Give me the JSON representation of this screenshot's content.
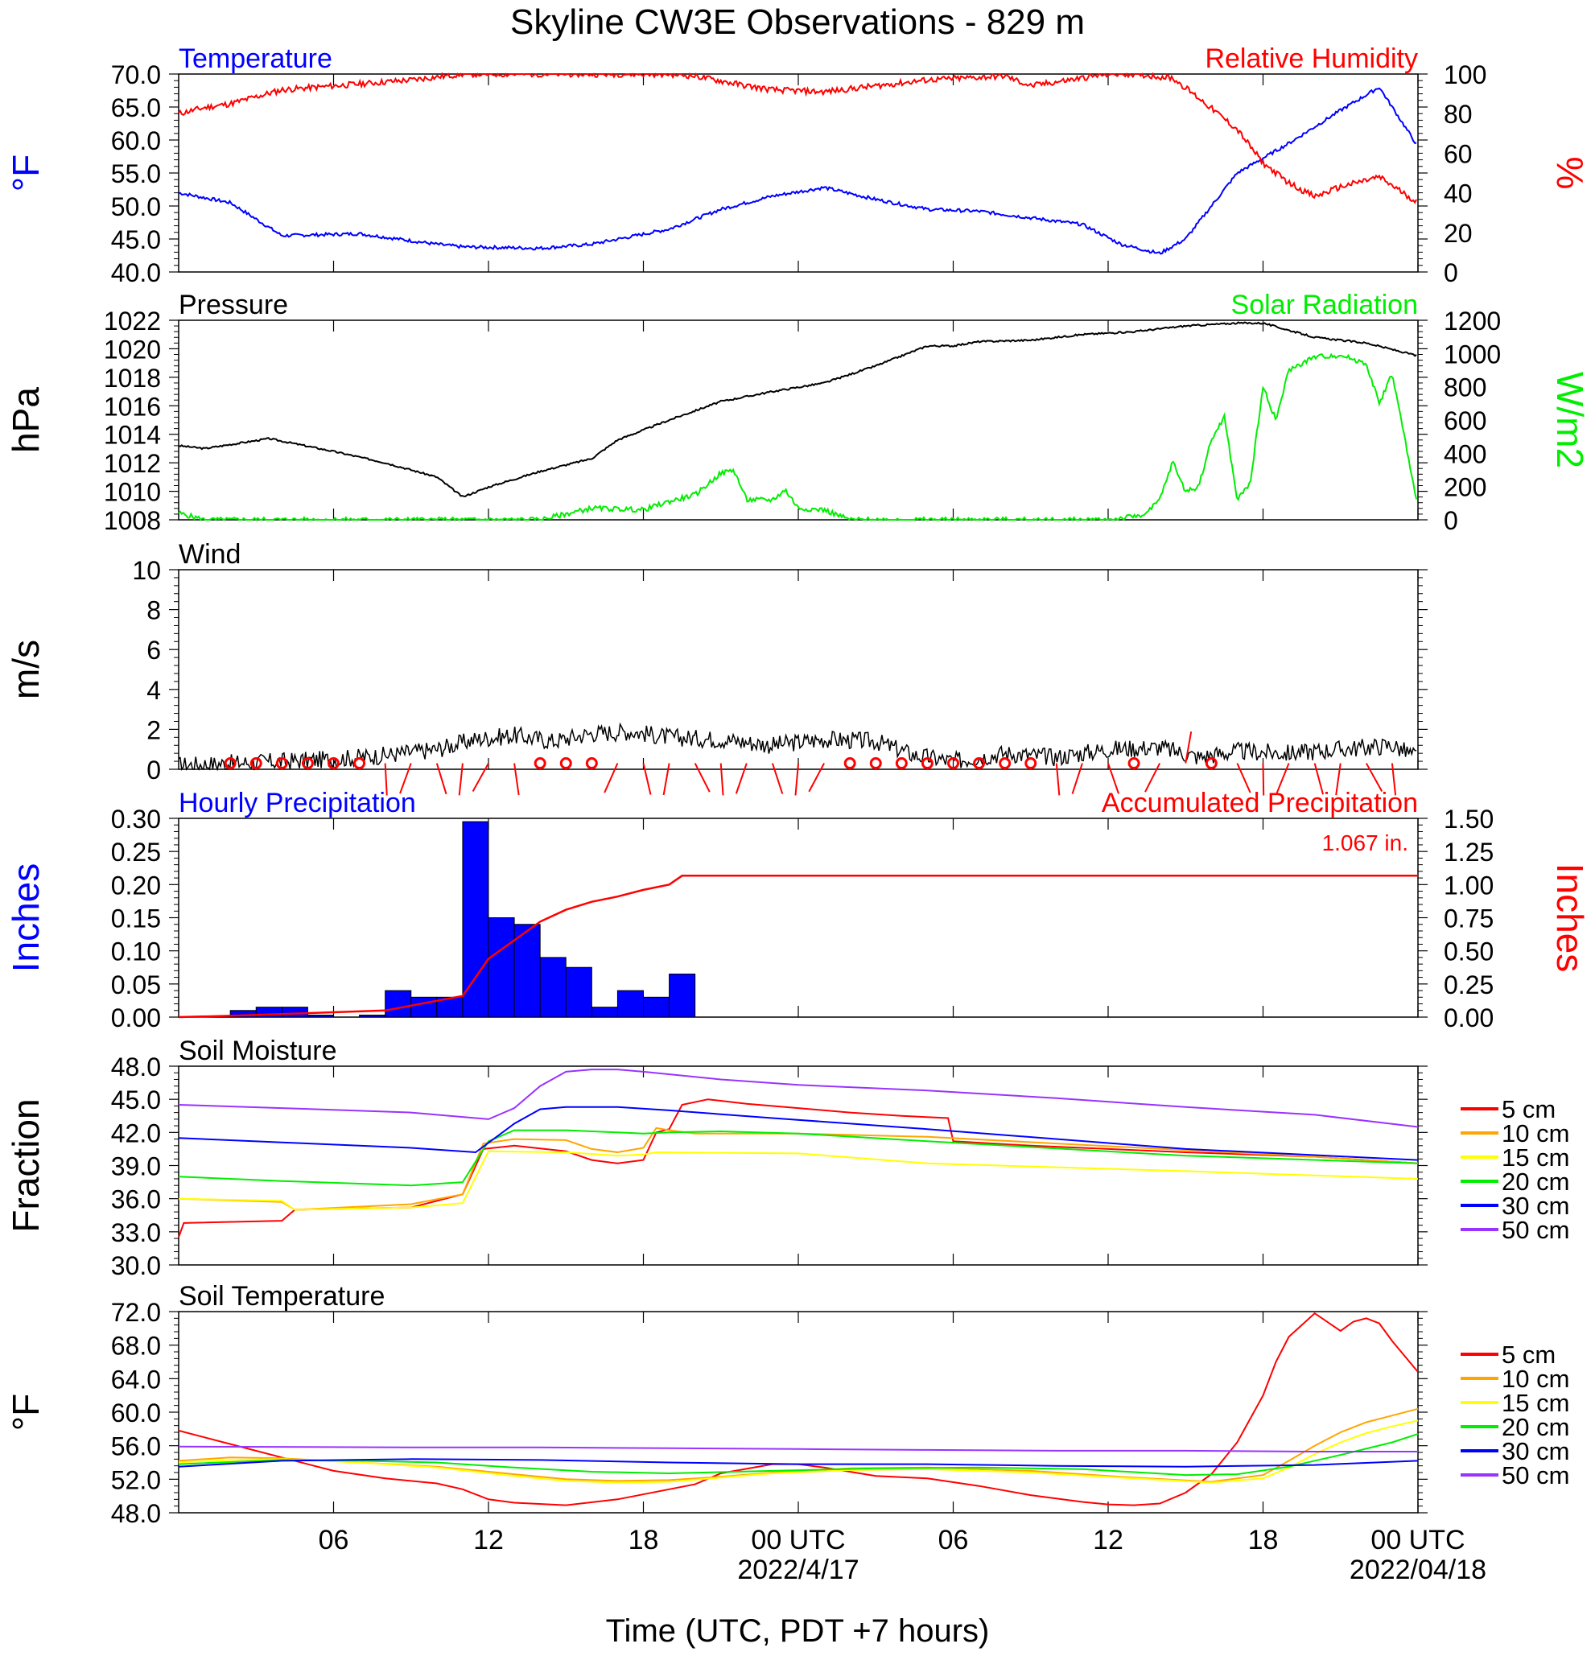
{
  "title": "Skyline CW3E Observations - 829 m",
  "x_axis": {
    "label": "Time (UTC, PDT +7 hours)",
    "ticks": [
      "06",
      "12",
      "18",
      "00 UTC",
      "06",
      "12",
      "18",
      "00 UTC"
    ],
    "date_labels": [
      "2022/4/17",
      "2022/04/18"
    ]
  },
  "colors": {
    "temperature": "#0000ff",
    "humidity": "#ff0000",
    "pressure": "#000000",
    "solar": "#00ee00",
    "precip_bar": "#0000ff",
    "accum": "#ff0000",
    "d5": "#ff0000",
    "d10": "#ffa500",
    "d15": "#ffff00",
    "d20": "#00ee00",
    "d30": "#0000ff",
    "d50": "#9933ff"
  },
  "chart_data": [
    {
      "type": "line",
      "title_left": "Temperature",
      "title_right": "Relative Humidity",
      "ylabel_left": "°F",
      "ylabel_right": "%",
      "ylim_left": [
        40,
        70
      ],
      "ylim_right": [
        0,
        100
      ],
      "yticks_left": [
        "70.0",
        "65.0",
        "60.0",
        "55.0",
        "50.0",
        "45.0",
        "40.0"
      ],
      "yticks_right": [
        "100",
        "80",
        "60",
        "40",
        "20",
        "0"
      ],
      "series": [
        {
          "name": "Temperature",
          "axis": "left",
          "hours": [
            1,
            3,
            5,
            8,
            11,
            12,
            15,
            17,
            20,
            22,
            24,
            26,
            28,
            30,
            32,
            34,
            36,
            37.5,
            39,
            40,
            42,
            44,
            46,
            47.5,
            49
          ],
          "values": [
            52,
            50.5,
            45.5,
            45.8,
            44.2,
            43.8,
            43.6,
            44.2,
            46.5,
            49.5,
            51.5,
            52.8,
            51,
            49.5,
            49.2,
            48.2,
            47.2,
            44.2,
            42.8,
            45,
            55,
            59.5,
            64.5,
            68,
            59
          ]
        },
        {
          "name": "Relative Humidity",
          "axis": "right",
          "hours": [
            1,
            2,
            3,
            5,
            7,
            10,
            12,
            15,
            18,
            20,
            21,
            23,
            24,
            26,
            28,
            30,
            33,
            34,
            37,
            38,
            39.5,
            40.5,
            42,
            43,
            44,
            45,
            46,
            47.5,
            49
          ],
          "values": [
            80,
            83,
            85,
            92,
            94,
            97,
            100,
            100,
            100,
            100,
            99,
            94,
            92,
            91,
            94,
            97,
            99,
            94,
            100,
            100,
            98,
            88,
            72,
            55,
            45,
            38,
            43,
            48,
            35
          ]
        }
      ]
    },
    {
      "type": "line",
      "title_left": "Pressure",
      "title_right": "Solar Radiation",
      "ylabel_left": "hPa",
      "ylabel_right": "W/m2",
      "ylim_left": [
        1008,
        1022
      ],
      "ylim_right": [
        0,
        1200
      ],
      "yticks_left": [
        "1022",
        "1020",
        "1018",
        "1016",
        "1014",
        "1012",
        "1010",
        "1008"
      ],
      "yticks_right": [
        "1200",
        "1000",
        "800",
        "600",
        "400",
        "200",
        "0"
      ],
      "series": [
        {
          "name": "Pressure",
          "axis": "left",
          "hours": [
            1,
            2,
            4.5,
            7,
            9,
            11,
            12,
            13,
            15,
            17,
            18,
            20,
            22,
            24,
            26,
            28,
            30,
            31,
            32,
            34,
            36,
            38,
            40,
            42,
            43,
            45,
            47,
            49
          ],
          "values": [
            1013.2,
            1013,
            1013.7,
            1012.8,
            1012,
            1011,
            1009.6,
            1010.3,
            1011.4,
            1012.3,
            1013.6,
            1015,
            1016.3,
            1017,
            1017.6,
            1018.8,
            1020.2,
            1020.2,
            1020.5,
            1020.6,
            1021,
            1021.2,
            1021.6,
            1021.8,
            1021.8,
            1020.8,
            1020.4,
            1019.5
          ]
        },
        {
          "name": "Solar Radiation",
          "axis": "right",
          "hours": [
            1,
            2,
            14,
            15,
            17,
            19,
            20,
            20.5,
            21,
            22,
            22.5,
            23,
            24,
            24.5,
            25,
            26,
            27,
            37,
            38,
            38.5,
            39,
            39.5,
            40,
            40.5,
            41,
            41.5,
            42,
            42.5,
            43,
            43.5,
            44,
            45,
            46,
            47,
            47.5,
            48,
            48.5,
            49
          ],
          "values": [
            40,
            0,
            0,
            0,
            70,
            60,
            110,
            130,
            150,
            280,
            300,
            120,
            120,
            180,
            70,
            60,
            0,
            0,
            20,
            40,
            120,
            350,
            170,
            200,
            480,
            620,
            120,
            220,
            800,
            600,
            900,
            980,
            990,
            940,
            700,
            880,
            480,
            60
          ]
        }
      ]
    },
    {
      "type": "scatter",
      "title_left": "Wind",
      "ylabel_left": "m/s",
      "ylim_left": [
        0,
        10
      ],
      "yticks_left": [
        "10",
        "8",
        "6",
        "4",
        "2",
        "0"
      ],
      "series": [
        {
          "name": "Wind",
          "hours": [
            1,
            3,
            5,
            7,
            9,
            11,
            12.5,
            14,
            15.5,
            17,
            18.5,
            20,
            22,
            24,
            26,
            28,
            29.5,
            31,
            33,
            35,
            37,
            39,
            40.5,
            42,
            44,
            46,
            48,
            49
          ],
          "values": [
            0.2,
            0.3,
            0.4,
            0.5,
            0.7,
            1,
            1.5,
            1.7,
            1.4,
            1.8,
            1.9,
            1.6,
            1.5,
            1.2,
            1.5,
            1.4,
            0.7,
            0.4,
            0.8,
            0.6,
            1,
            1.1,
            0.6,
            0.9,
            0.8,
            1,
            1.2,
            0.6
          ]
        }
      ],
      "calm_hours": [
        3,
        4,
        5,
        6,
        7,
        8,
        15,
        16,
        17,
        27,
        28,
        29,
        30,
        31,
        32,
        33,
        34,
        38,
        41
      ]
    },
    {
      "type": "bar",
      "title_left": "Hourly Precipitation",
      "title_right": "Accumulated Precipitation",
      "annotation": "1.067 in.",
      "ylabel_left": "Inches",
      "ylabel_right": "Inches",
      "ylim_left": [
        0,
        0.3
      ],
      "ylim_right": [
        0,
        1.5
      ],
      "yticks_left": [
        "0.30",
        "0.25",
        "0.20",
        "0.15",
        "0.10",
        "0.05",
        "0.00"
      ],
      "yticks_right": [
        "1.50",
        "1.25",
        "1.00",
        "0.75",
        "0.50",
        "0.25",
        "0.00"
      ],
      "bar_start_hour": 3,
      "hourly": [
        0.01,
        0.015,
        0.015,
        0.003,
        0,
        0.003,
        0.04,
        0.03,
        0.03,
        0.295,
        0.15,
        0.14,
        0.09,
        0.075,
        0.015,
        0.04,
        0.03,
        0.065
      ],
      "accum_hours": [
        1,
        3,
        9,
        12,
        13,
        14,
        15,
        16,
        17,
        18,
        19,
        20,
        20.5,
        49
      ],
      "accum_values": [
        0,
        0.01,
        0.05,
        0.16,
        0.44,
        0.58,
        0.72,
        0.81,
        0.87,
        0.91,
        0.96,
        1.0,
        1.067,
        1.067
      ]
    },
    {
      "type": "line",
      "title_left": "Soil Moisture",
      "ylabel_left": "Fraction",
      "ylim_left": [
        30,
        48
      ],
      "yticks_left": [
        "48.0",
        "45.0",
        "42.0",
        "39.0",
        "36.0",
        "33.0",
        "30.0"
      ],
      "legend": [
        "5 cm",
        "10 cm",
        "15 cm",
        "20 cm",
        "30 cm",
        "50 cm"
      ],
      "series": [
        {
          "name": "5 cm",
          "color_key": "d5",
          "hours": [
            1,
            1.2,
            5,
            5.5,
            10,
            12,
            12.8,
            14,
            16,
            17,
            18,
            19,
            19.5,
            20,
            20.5,
            21.5,
            23,
            25,
            27,
            29,
            30.8,
            31,
            34,
            40,
            45,
            49
          ],
          "values": [
            32.5,
            33.8,
            34,
            35,
            35.2,
            36.4,
            40.5,
            40.8,
            40.3,
            39.5,
            39.2,
            39.5,
            42,
            42.3,
            44.5,
            45,
            44.6,
            44.2,
            43.8,
            43.5,
            43.3,
            41.2,
            40.8,
            40.2,
            39.8,
            39.2
          ]
        },
        {
          "name": "10 cm",
          "color_key": "d10",
          "hours": [
            1,
            5,
            5.5,
            10,
            12,
            12.8,
            14,
            16,
            17,
            18,
            19,
            19.5,
            20,
            21,
            25,
            30,
            35,
            45,
            49
          ],
          "values": [
            36,
            35.7,
            35,
            35.5,
            36.4,
            41,
            41.4,
            41.3,
            40.5,
            40.2,
            40.6,
            42.4,
            42.2,
            41.9,
            41.9,
            41.6,
            41,
            39.8,
            39.2
          ]
        },
        {
          "name": "15 cm",
          "color_key": "d15",
          "hours": [
            1,
            5,
            5.5,
            10,
            12,
            13,
            16,
            18,
            19,
            19.5,
            25,
            30,
            40,
            49
          ],
          "values": [
            36,
            35.8,
            35,
            35.2,
            35.6,
            40.3,
            40.2,
            39.9,
            40,
            40.2,
            40.1,
            39.2,
            38.5,
            37.8
          ]
        },
        {
          "name": "20 cm",
          "color_key": "d20",
          "hours": [
            1,
            5,
            10,
            12,
            13,
            14,
            16,
            18,
            19,
            20,
            22,
            25,
            30,
            40,
            49
          ],
          "values": [
            38,
            37.6,
            37.2,
            37.5,
            41.2,
            42.2,
            42.2,
            42,
            41.9,
            42,
            42.1,
            41.9,
            41.2,
            39.9,
            39.2
          ]
        },
        {
          "name": "30 cm",
          "color_key": "d30",
          "hours": [
            1,
            5,
            10,
            12.5,
            14,
            15,
            16,
            18,
            20,
            24,
            30,
            40,
            49
          ],
          "values": [
            41.5,
            41.1,
            40.6,
            40.2,
            42.8,
            44.1,
            44.3,
            44.3,
            44,
            43.3,
            42.3,
            40.5,
            39.5
          ]
        },
        {
          "name": "50 cm",
          "color_key": "d50",
          "hours": [
            1,
            5,
            10,
            13,
            14,
            15,
            16,
            17,
            18,
            19,
            22,
            25,
            30,
            35,
            40,
            45,
            49
          ],
          "values": [
            44.5,
            44.2,
            43.8,
            43.2,
            44.2,
            46.2,
            47.5,
            47.7,
            47.7,
            47.5,
            46.8,
            46.3,
            45.8,
            45.1,
            44.3,
            43.6,
            42.5
          ]
        }
      ]
    },
    {
      "type": "line",
      "title_left": "Soil Temperature",
      "ylabel_left": "°F",
      "ylim_left": [
        48,
        72
      ],
      "yticks_left": [
        "72.0",
        "68.0",
        "64.0",
        "60.0",
        "56.0",
        "52.0",
        "48.0"
      ],
      "legend": [
        "5 cm",
        "10 cm",
        "15 cm",
        "20 cm",
        "30 cm",
        "50 cm"
      ],
      "series": [
        {
          "name": "5 cm",
          "color_key": "d5",
          "hours": [
            1,
            3,
            5,
            7,
            9,
            11,
            12,
            13,
            14,
            16,
            18,
            20,
            21,
            22,
            24,
            25,
            26,
            28,
            30,
            32,
            34,
            36,
            37,
            38,
            39,
            40,
            41,
            42,
            43,
            43.5,
            44,
            45,
            46,
            46.5,
            47,
            47.5,
            48,
            49
          ],
          "values": [
            57.8,
            56.2,
            54.6,
            53,
            52.1,
            51.5,
            50.8,
            49.6,
            49.2,
            48.9,
            49.6,
            50.8,
            51.4,
            52.7,
            53.8,
            53.8,
            53.4,
            52.4,
            52.1,
            51.2,
            50.1,
            49.3,
            49,
            48.9,
            49.1,
            50.4,
            52.6,
            56.4,
            62,
            66,
            69,
            71.8,
            69.7,
            70.8,
            71.2,
            70.6,
            68.5,
            64.8
          ]
        },
        {
          "name": "10 cm",
          "color_key": "d10",
          "hours": [
            1,
            3,
            5,
            8,
            11,
            14,
            16,
            18,
            20,
            22,
            24,
            27,
            30,
            34,
            38,
            41,
            43,
            44,
            45,
            46,
            47,
            48,
            49
          ],
          "values": [
            54.2,
            54.6,
            54.5,
            54,
            53.5,
            52.6,
            52,
            51.8,
            51.9,
            52.3,
            52.8,
            53.3,
            53.4,
            53,
            52.2,
            51.7,
            52.5,
            54.2,
            56,
            57.6,
            58.8,
            59.6,
            60.4
          ]
        },
        {
          "name": "15 cm",
          "color_key": "d15",
          "hours": [
            1,
            3,
            5,
            8,
            11,
            14,
            16,
            18,
            20,
            22,
            24,
            27,
            30,
            34,
            38,
            41,
            43,
            44,
            45,
            46,
            47,
            48,
            49
          ],
          "values": [
            54,
            54.3,
            54.4,
            54,
            53.4,
            52.4,
            51.8,
            51.6,
            51.7,
            52.2,
            52.7,
            53.1,
            53.2,
            52.8,
            52.1,
            51.6,
            52.1,
            53.4,
            55,
            56.4,
            57.5,
            58.3,
            59
          ]
        },
        {
          "name": "20 cm",
          "color_key": "d20",
          "hours": [
            1,
            5,
            8,
            11,
            14,
            17,
            20,
            24,
            28,
            32,
            36,
            40,
            42,
            44,
            46,
            48,
            49
          ],
          "values": [
            53.8,
            54.3,
            54.2,
            54,
            53.4,
            52.9,
            52.7,
            53,
            53.3,
            53.4,
            53.2,
            52.5,
            52.6,
            53.5,
            54.9,
            56.4,
            57.4
          ]
        },
        {
          "name": "30 cm",
          "color_key": "d30",
          "hours": [
            1,
            5,
            10,
            15,
            20,
            25,
            30,
            35,
            40,
            45,
            49
          ],
          "values": [
            53.5,
            54.2,
            54.4,
            54.3,
            54,
            53.8,
            53.8,
            53.6,
            53.5,
            53.7,
            54.2
          ]
        },
        {
          "name": "50 cm",
          "color_key": "d50",
          "hours": [
            1,
            10,
            15,
            20,
            25,
            30,
            35,
            40,
            45,
            49
          ],
          "values": [
            55.9,
            55.8,
            55.8,
            55.7,
            55.6,
            55.5,
            55.4,
            55.4,
            55.3,
            55.3
          ]
        }
      ]
    }
  ]
}
